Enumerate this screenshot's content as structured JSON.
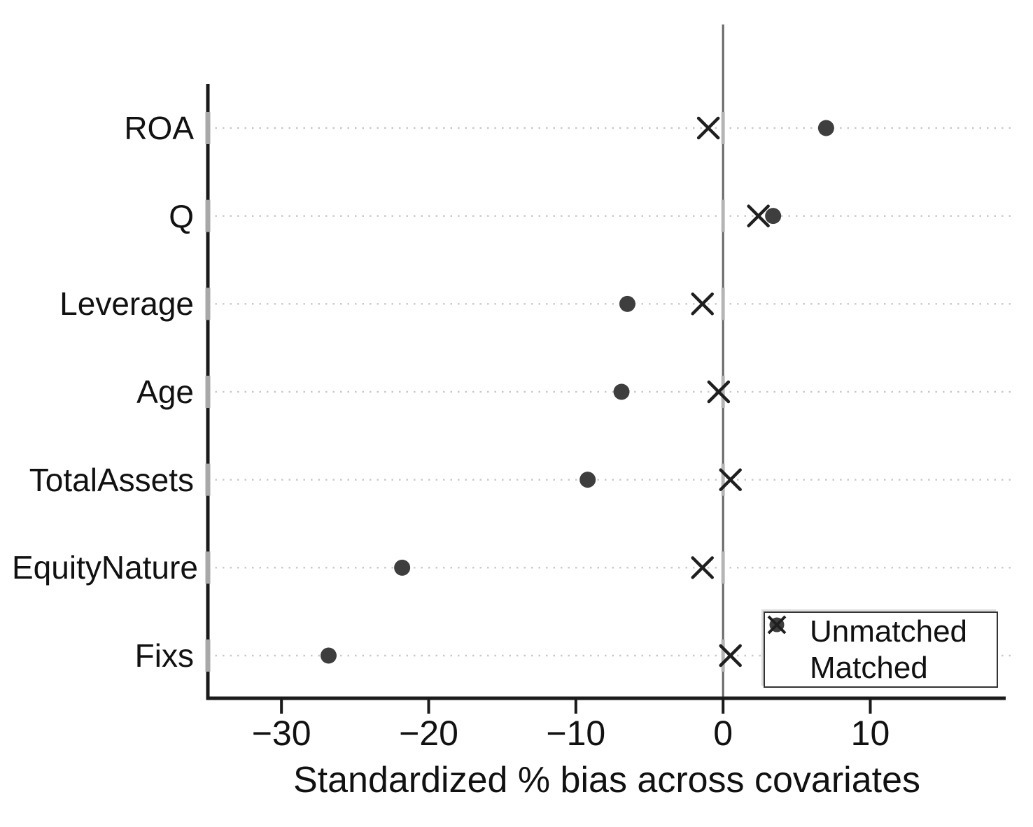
{
  "figure": {
    "background": "#ffffff"
  },
  "chart_data": {
    "type": "scatter",
    "title": "",
    "xlabel": "Standardized % bias across covariates",
    "ylabel": "",
    "categories": [
      "ROA",
      "Q",
      "Leverage",
      "Age",
      "TotalAssets",
      "EquityNature",
      "Fixs"
    ],
    "series": [
      {
        "name": "Unmatched",
        "marker": "circle",
        "color": "#3e3e3e",
        "values": [
          7.0,
          3.4,
          -6.5,
          -6.9,
          -9.2,
          -21.8,
          -26.8
        ]
      },
      {
        "name": "Matched",
        "marker": "x",
        "color": "#1f1f1f",
        "values": [
          -1.0,
          2.4,
          -1.4,
          -0.3,
          0.5,
          -1.4,
          0.5
        ]
      }
    ],
    "x_ticks": [
      -30,
      -20,
      -10,
      0,
      10
    ],
    "xlim": [
      -35,
      19.2
    ],
    "reference_line_x": 0,
    "grid": "horizontal-dotted",
    "legend_position": "inside-bottom-right"
  },
  "colors": {
    "axis": "#1a1a1a",
    "zero_line": "#666666",
    "gridline": "#c9c9c9",
    "axis_tick_overlay": "#a8a8a8",
    "text": "#111111"
  }
}
